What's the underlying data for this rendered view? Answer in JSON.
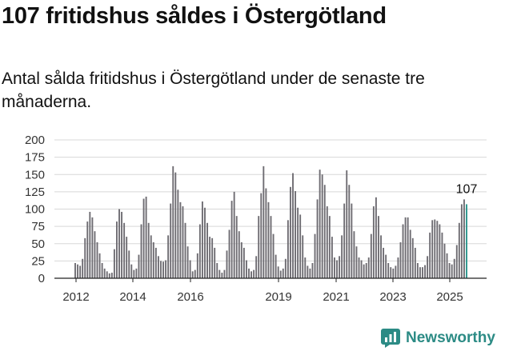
{
  "header": {
    "title": "107 fritidshus såldes i Östergötland",
    "subtitle": "Antal sålda fritidshus i Östergötland under de senaste tre månaderna."
  },
  "brand": {
    "name": "Newsworthy",
    "color": "#2c8b85"
  },
  "colors": {
    "bars": "#6e6c72",
    "highlight": "#2a958c",
    "grid": "#d8d8d8",
    "axis": "#222222"
  },
  "chart_data": {
    "type": "bar",
    "title": "107 fritidshus såldes i Östergötland",
    "subtitle": "Antal sålda fritidshus i Östergötland under de senaste tre månaderna.",
    "xlabel": "",
    "ylabel": "",
    "ylim": [
      0,
      200
    ],
    "yticks": [
      "0",
      "25",
      "50",
      "75",
      "100",
      "125",
      "150",
      "175",
      "200"
    ],
    "xtick_labels": [
      "2012",
      "2014",
      "2016",
      "2019",
      "2021",
      "2023",
      "2025"
    ],
    "annotation": "107",
    "grid": true,
    "values": [
      22,
      20,
      18,
      28,
      58,
      82,
      96,
      88,
      68,
      52,
      36,
      22,
      14,
      10,
      7,
      8,
      42,
      82,
      100,
      96,
      80,
      60,
      40,
      20,
      12,
      14,
      34,
      78,
      115,
      118,
      80,
      62,
      52,
      44,
      32,
      25,
      24,
      26,
      62,
      108,
      162,
      153,
      128,
      110,
      104,
      80,
      46,
      26,
      10,
      12,
      36,
      78,
      111,
      102,
      80,
      60,
      58,
      44,
      22,
      12,
      8,
      12,
      40,
      70,
      112,
      125,
      90,
      68,
      52,
      44,
      26,
      14,
      10,
      12,
      32,
      90,
      123,
      162,
      130,
      110,
      90,
      64,
      34,
      17,
      11,
      14,
      28,
      84,
      132,
      152,
      126,
      102,
      92,
      62,
      30,
      18,
      14,
      22,
      64,
      114,
      157,
      150,
      135,
      104,
      90,
      60,
      30,
      26,
      32,
      62,
      108,
      156,
      135,
      108,
      68,
      46,
      30,
      26,
      20,
      22,
      30,
      64,
      104,
      117,
      90,
      62,
      44,
      34,
      22,
      16,
      14,
      18,
      30,
      52,
      78,
      88,
      88,
      70,
      58,
      44,
      22,
      16,
      16,
      19,
      32,
      66,
      84,
      85,
      83,
      78,
      66,
      50,
      36,
      22,
      20,
      28,
      48,
      80,
      107,
      114,
      107
    ],
    "highlight_last": 1
  }
}
